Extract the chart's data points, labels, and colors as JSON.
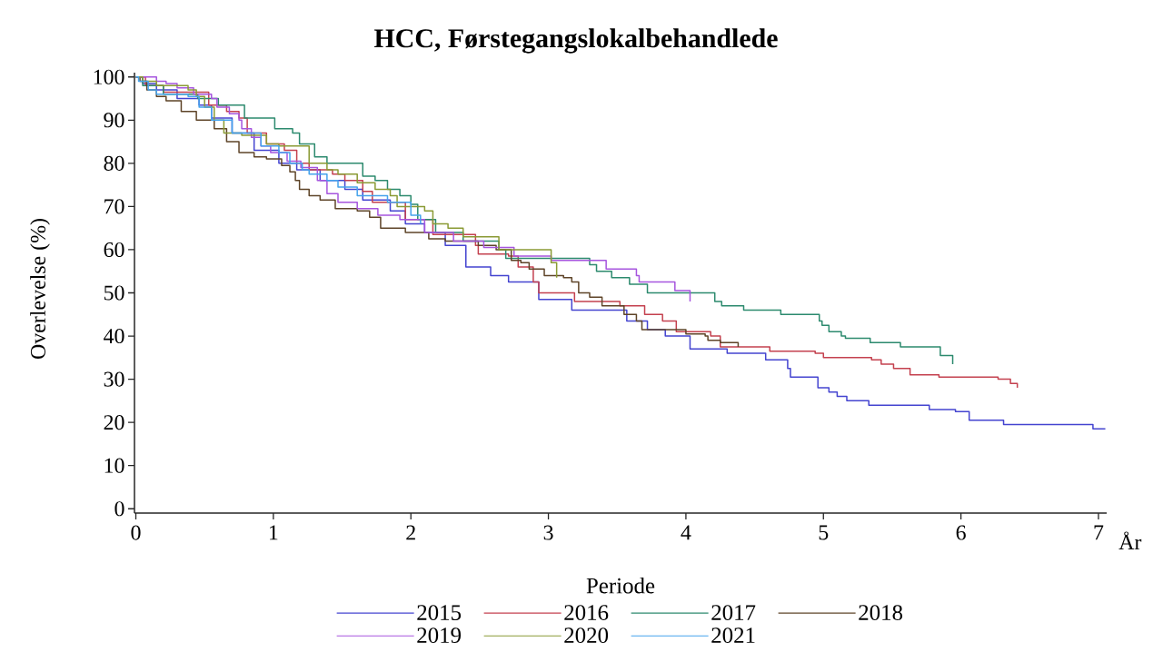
{
  "chart_data": {
    "type": "step",
    "title": "HCC, Førstegangslokalbehandlede",
    "xlabel": "År",
    "ylabel": "Overlevelse (%)",
    "legend_title": "Periode",
    "legend": "bottom",
    "xlim": [
      -0.01,
      7.06
    ],
    "ylim": [
      -1,
      101
    ],
    "xticks": [
      0,
      1,
      2,
      3,
      4,
      5,
      6,
      7
    ],
    "yticks": [
      0,
      10,
      20,
      30,
      40,
      50,
      60,
      70,
      80,
      90,
      100
    ],
    "series": [
      {
        "name": "2015",
        "color": "#4444d0",
        "x": [
          0,
          0.05,
          0.15,
          0.3,
          0.46,
          0.55,
          0.7,
          0.86,
          1.04,
          1.17,
          1.34,
          1.52,
          1.65,
          1.85,
          1.96,
          2.1,
          2.25,
          2.4,
          2.58,
          2.71,
          2.93,
          3.17,
          3.57,
          3.72,
          3.85,
          4.03,
          4.3,
          4.58,
          4.74,
          4.76,
          4.96,
          5.04,
          5.1,
          5.17,
          5.33,
          5.77,
          5.96,
          6.06,
          6.31,
          6.96,
          7.05
        ],
        "values": [
          100,
          98.5,
          97,
          95,
          93.5,
          90.5,
          87,
          83,
          80,
          78.5,
          76,
          74,
          71.5,
          69,
          66,
          64,
          61,
          56,
          54,
          52.5,
          48.5,
          46,
          43.5,
          41.5,
          40,
          37,
          36,
          34.5,
          32.5,
          30.5,
          28,
          27,
          26,
          25,
          24,
          23,
          22.5,
          20.5,
          19.5,
          18.5,
          18.5
        ]
      },
      {
        "name": "2016",
        "color": "#c4414f",
        "x": [
          0,
          0.07,
          0.2,
          0.53,
          0.66,
          0.75,
          0.81,
          0.95,
          1.08,
          1.17,
          1.26,
          1.43,
          1.52,
          1.65,
          1.72,
          1.96,
          2.16,
          2.47,
          2.49,
          2.71,
          2.78,
          2.89,
          2.93,
          3.19,
          3.52,
          3.7,
          3.83,
          3.93,
          4.18,
          4.25,
          4.61,
          4.94,
          5.0,
          5.35,
          5.42,
          5.51,
          5.63,
          5.84,
          6.27,
          6.36,
          6.41
        ],
        "values": [
          100,
          98,
          96.5,
          93.5,
          92,
          90.5,
          87,
          84.5,
          83,
          80,
          78.5,
          77.5,
          76,
          73.5,
          71,
          67,
          63.5,
          61,
          59,
          58.5,
          56,
          52.5,
          50,
          48,
          47,
          45,
          43.5,
          41,
          40,
          37.5,
          36.5,
          36,
          35,
          34.5,
          33.5,
          32.5,
          31,
          30.5,
          30,
          29,
          28
        ]
      },
      {
        "name": "2017",
        "color": "#2c8a6e",
        "x": [
          0,
          0.05,
          0.2,
          0.45,
          0.6,
          0.79,
          1.01,
          1.14,
          1.19,
          1.3,
          1.39,
          1.65,
          1.74,
          1.83,
          1.92,
          2.0,
          2.05,
          2.18,
          2.38,
          2.64,
          2.69,
          3.3,
          3.35,
          3.46,
          3.59,
          3.72,
          4.21,
          4.26,
          4.42,
          4.69,
          4.97,
          4.99,
          5.04,
          5.13,
          5.16,
          5.34,
          5.56,
          5.85,
          5.94
        ],
        "values": [
          100,
          98,
          96,
          95,
          93.5,
          90.5,
          88,
          87,
          84.5,
          81.5,
          80,
          77,
          76,
          74,
          72.5,
          70.5,
          67,
          64,
          62,
          60,
          58,
          56.5,
          55,
          53.5,
          52,
          50,
          48,
          47,
          46,
          45,
          43.5,
          42.5,
          41,
          40,
          39.5,
          38.5,
          37.5,
          35.5,
          33.5
        ]
      },
      {
        "name": "2018",
        "color": "#5e4428",
        "x": [
          0,
          0.03,
          0.08,
          0.15,
          0.22,
          0.33,
          0.44,
          0.57,
          0.66,
          0.75,
          0.86,
          0.95,
          1.06,
          1.12,
          1.16,
          1.19,
          1.26,
          1.34,
          1.45,
          1.61,
          1.7,
          1.78,
          1.96,
          2.13,
          2.25,
          2.49,
          2.62,
          2.73,
          2.8,
          2.86,
          2.97,
          3.11,
          3.17,
          3.22,
          3.3,
          3.39,
          3.55,
          3.64,
          3.68,
          4.0,
          4.14,
          4.16,
          4.25,
          4.38
        ],
        "values": [
          100,
          99,
          97,
          95.5,
          94.5,
          92,
          90,
          88,
          85,
          82.5,
          81.5,
          81,
          79.5,
          78,
          76,
          74,
          72.5,
          71.5,
          69.5,
          69,
          67.5,
          65,
          64,
          62.5,
          62,
          61,
          60,
          57.5,
          57,
          55.5,
          54,
          53.5,
          52.5,
          50,
          49,
          47,
          45,
          43.5,
          41.5,
          40.5,
          40,
          39,
          38.5,
          37.5
        ]
      },
      {
        "name": "2019",
        "color": "#a655de",
        "x": [
          0,
          0.15,
          0.22,
          0.3,
          0.42,
          0.55,
          0.59,
          0.68,
          0.75,
          0.77,
          0.84,
          0.91,
          0.98,
          1.1,
          1.2,
          1.32,
          1.39,
          1.47,
          1.61,
          1.76,
          1.92,
          2.1,
          2.31,
          2.53,
          2.75,
          3.02,
          3.42,
          3.64,
          3.66,
          3.92,
          4.03
        ],
        "values": [
          100,
          99,
          98.5,
          97.5,
          96,
          95,
          93,
          91.5,
          90,
          88,
          86,
          84,
          82.5,
          80.5,
          79,
          76,
          73,
          71,
          69.5,
          68,
          67,
          64,
          62,
          60.5,
          58.5,
          57.5,
          55.5,
          54,
          52.5,
          50.5,
          48
        ]
      },
      {
        "name": "2020",
        "color": "#8a9a34",
        "x": [
          0,
          0.05,
          0.15,
          0.38,
          0.44,
          0.5,
          0.57,
          0.64,
          0.77,
          0.95,
          1.04,
          1.26,
          1.39,
          1.47,
          1.61,
          1.74,
          1.85,
          1.9,
          2.1,
          2.16,
          2.27,
          2.38,
          2.64,
          3.02,
          3.06
        ],
        "values": [
          100,
          99,
          98,
          97,
          95.5,
          93,
          90,
          87,
          86.5,
          84.5,
          84,
          80,
          78.5,
          77.5,
          75.5,
          74,
          72.5,
          70,
          69,
          66,
          65,
          63,
          60,
          57,
          53.5
        ]
      },
      {
        "name": "2021",
        "color": "#45a3ec",
        "x": [
          0,
          0.02,
          0.09,
          0.15,
          0.38,
          0.46,
          0.55,
          0.7,
          0.91,
          1.04,
          1.12,
          1.21,
          1.26,
          1.39,
          1.47,
          1.61,
          1.83,
          2.0,
          2.07
        ],
        "values": [
          100,
          99,
          97,
          96,
          95.5,
          93,
          90,
          87,
          84,
          82.5,
          80,
          78.5,
          77.5,
          76,
          74.5,
          72.5,
          71,
          68,
          66
        ]
      }
    ]
  }
}
